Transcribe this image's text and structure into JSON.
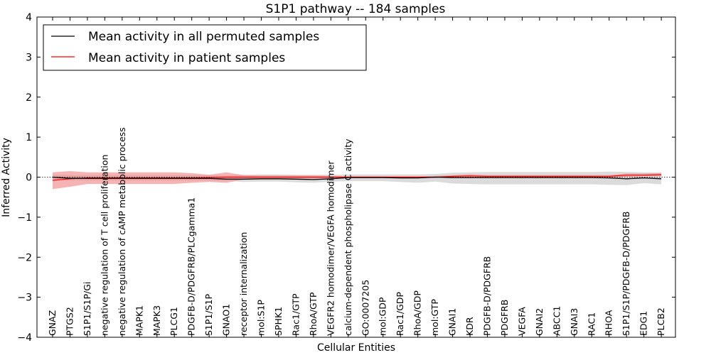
{
  "chart_data": {
    "type": "line",
    "title": "S1P1 pathway -- 184 samples",
    "xlabel": "Cellular Entities",
    "ylabel": "Inferred Activity",
    "ylim": [
      -4,
      4
    ],
    "yticks": [
      -4,
      -3,
      -2,
      -1,
      0,
      1,
      2,
      3,
      4
    ],
    "ytick_labels": [
      "−4",
      "−3",
      "−2",
      "−1",
      "0",
      "1",
      "2",
      "3",
      "4"
    ],
    "legend_position": "top-left",
    "categories": [
      "GNAZ",
      "PTGS2",
      "S1P1/S1P/Gi",
      "negative regulation of T cell proliferation",
      "negative regulation of cAMP metabolic process",
      "MAPK1",
      "MAPK3",
      "PLCG1",
      "PDGFB-D/PDGFRB/PLCgamma1",
      "S1P1/S1P",
      "GNAO1",
      "receptor internalization",
      "mol:S1P",
      "SPHK1",
      "Rac1/GTP",
      "RhoA/GTP",
      "VEGFR2 homodimer/VEGFA homodimer",
      "calcium-dependent phospholipase C activity",
      "GO:0007205",
      "mol:GDP",
      "Rac1/GDP",
      "RhoA/GDP",
      "mol:GTP",
      "GNAI1",
      "KDR",
      "PDGFB-D/PDGFRB",
      "PDGFRB",
      "VEGFA",
      "GNAI2",
      "ABCC1",
      "GNAI3",
      "RAC1",
      "RHOA",
      "S1P1/S1P/PDGFB-D/PDGFRB",
      "EDG1",
      "PLCB2"
    ],
    "series": [
      {
        "name": "Mean activity in all permuted samples",
        "color": "#000000",
        "band_color": "#bdbdbd",
        "values": [
          0.0,
          -0.03,
          -0.03,
          -0.03,
          -0.03,
          -0.03,
          -0.03,
          -0.03,
          -0.03,
          -0.03,
          -0.05,
          -0.05,
          -0.04,
          -0.04,
          -0.05,
          -0.06,
          -0.04,
          -0.01,
          -0.01,
          -0.01,
          -0.02,
          -0.02,
          0.0,
          -0.01,
          -0.01,
          -0.01,
          -0.01,
          -0.01,
          -0.01,
          -0.01,
          -0.01,
          -0.01,
          -0.02,
          -0.04,
          -0.02,
          -0.04
        ],
        "lower": [
          -0.06,
          -0.08,
          -0.08,
          -0.08,
          -0.08,
          -0.08,
          -0.08,
          -0.08,
          -0.08,
          -0.08,
          -0.09,
          -0.12,
          -0.11,
          -0.11,
          -0.13,
          -0.14,
          -0.11,
          -0.1,
          -0.1,
          -0.1,
          -0.12,
          -0.14,
          -0.11,
          -0.16,
          -0.17,
          -0.18,
          -0.18,
          -0.18,
          -0.18,
          -0.18,
          -0.18,
          -0.18,
          -0.19,
          -0.2,
          -0.15,
          -0.18
        ],
        "upper": [
          0.06,
          0.05,
          0.05,
          0.05,
          0.05,
          0.05,
          0.05,
          0.05,
          0.05,
          0.05,
          0.04,
          0.06,
          0.07,
          0.07,
          0.06,
          0.06,
          0.06,
          0.07,
          0.07,
          0.07,
          0.07,
          0.07,
          0.08,
          0.11,
          0.12,
          0.13,
          0.13,
          0.13,
          0.13,
          0.13,
          0.13,
          0.13,
          0.14,
          0.13,
          0.12,
          0.12
        ]
      },
      {
        "name": "Mean activity in patient samples",
        "color": "#ff0000",
        "band_color": "#f08080",
        "values": [
          -0.08,
          -0.04,
          -0.02,
          -0.02,
          -0.02,
          -0.02,
          -0.02,
          -0.02,
          -0.02,
          -0.01,
          0.0,
          0.0,
          0.0,
          0.0,
          0.0,
          0.0,
          0.0,
          0.0,
          0.0,
          0.0,
          0.0,
          0.0,
          0.0,
          0.02,
          0.03,
          0.02,
          0.02,
          0.02,
          0.02,
          0.02,
          0.02,
          0.02,
          0.02,
          0.05,
          0.05,
          0.06
        ],
        "lower": [
          -0.3,
          -0.24,
          -0.17,
          -0.17,
          -0.17,
          -0.17,
          -0.17,
          -0.17,
          -0.14,
          -0.12,
          -0.14,
          -0.06,
          -0.04,
          -0.04,
          -0.04,
          -0.04,
          -0.03,
          -0.02,
          -0.02,
          -0.02,
          -0.02,
          -0.02,
          -0.02,
          0.0,
          -0.01,
          -0.01,
          -0.01,
          -0.01,
          -0.01,
          -0.01,
          -0.01,
          -0.01,
          -0.01,
          0.01,
          0.02,
          0.03
        ],
        "upper": [
          0.12,
          0.15,
          0.12,
          0.12,
          0.12,
          0.12,
          0.12,
          0.12,
          0.1,
          0.06,
          0.12,
          0.05,
          0.04,
          0.04,
          0.04,
          0.04,
          0.03,
          0.02,
          0.02,
          0.02,
          0.02,
          0.02,
          0.03,
          0.05,
          0.07,
          0.05,
          0.05,
          0.05,
          0.05,
          0.05,
          0.05,
          0.05,
          0.05,
          0.09,
          0.09,
          0.1
        ]
      }
    ]
  }
}
